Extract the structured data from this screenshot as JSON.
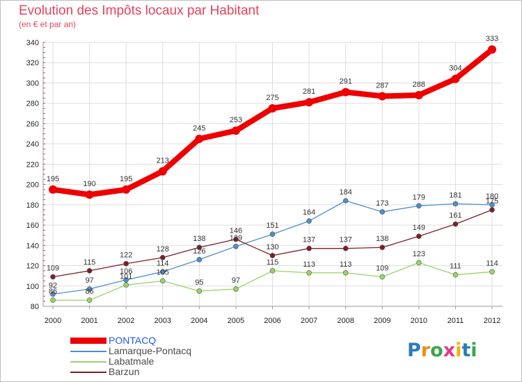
{
  "title": "Evolution des Impôts locaux par Habitant",
  "subtitle": "(en € et par an)",
  "logo": {
    "text": "Proxiti",
    "letters": [
      "P",
      "r",
      "o",
      "x",
      "i",
      "t",
      "i"
    ],
    "colors": [
      "#2a7bbd",
      "#f08a1c",
      "#3aa64a",
      "#e23a8c",
      "#f0b400",
      "#2a7bbd",
      "#3aa64a"
    ]
  },
  "chart_data": {
    "type": "line",
    "title": "Evolution des Impôts locaux par Habitant",
    "subtitle": "(en € et par an)",
    "x": [
      "2000",
      "2001",
      "2002",
      "2003",
      "2004",
      "2005",
      "2006",
      "2007",
      "2008",
      "2009",
      "2010",
      "2011",
      "2012"
    ],
    "ylim": [
      80,
      340
    ],
    "yticks": [
      80,
      100,
      120,
      140,
      160,
      180,
      200,
      220,
      240,
      260,
      280,
      300,
      320,
      340
    ],
    "grid": true,
    "legend": "bottom-left",
    "series": [
      {
        "name": "PONTACQ",
        "color": "#ee0000",
        "values": [
          195,
          190,
          195,
          213,
          245,
          253,
          275,
          281,
          291,
          287,
          288,
          304,
          333
        ]
      },
      {
        "name": "Lamarque-Pontacq",
        "color": "#4d8fcb",
        "values": [
          92,
          97,
          106,
          114,
          126,
          139,
          151,
          164,
          184,
          173,
          179,
          181,
          180
        ]
      },
      {
        "name": "Labatmale",
        "color": "#99d366",
        "values": [
          86,
          86,
          101,
          105,
          95,
          97,
          115,
          113,
          113,
          109,
          123,
          111,
          114
        ]
      },
      {
        "name": "Barzun",
        "color": "#7a1f2a",
        "values": [
          109,
          115,
          122,
          128,
          138,
          146,
          130,
          137,
          137,
          138,
          149,
          161,
          175
        ]
      }
    ]
  }
}
